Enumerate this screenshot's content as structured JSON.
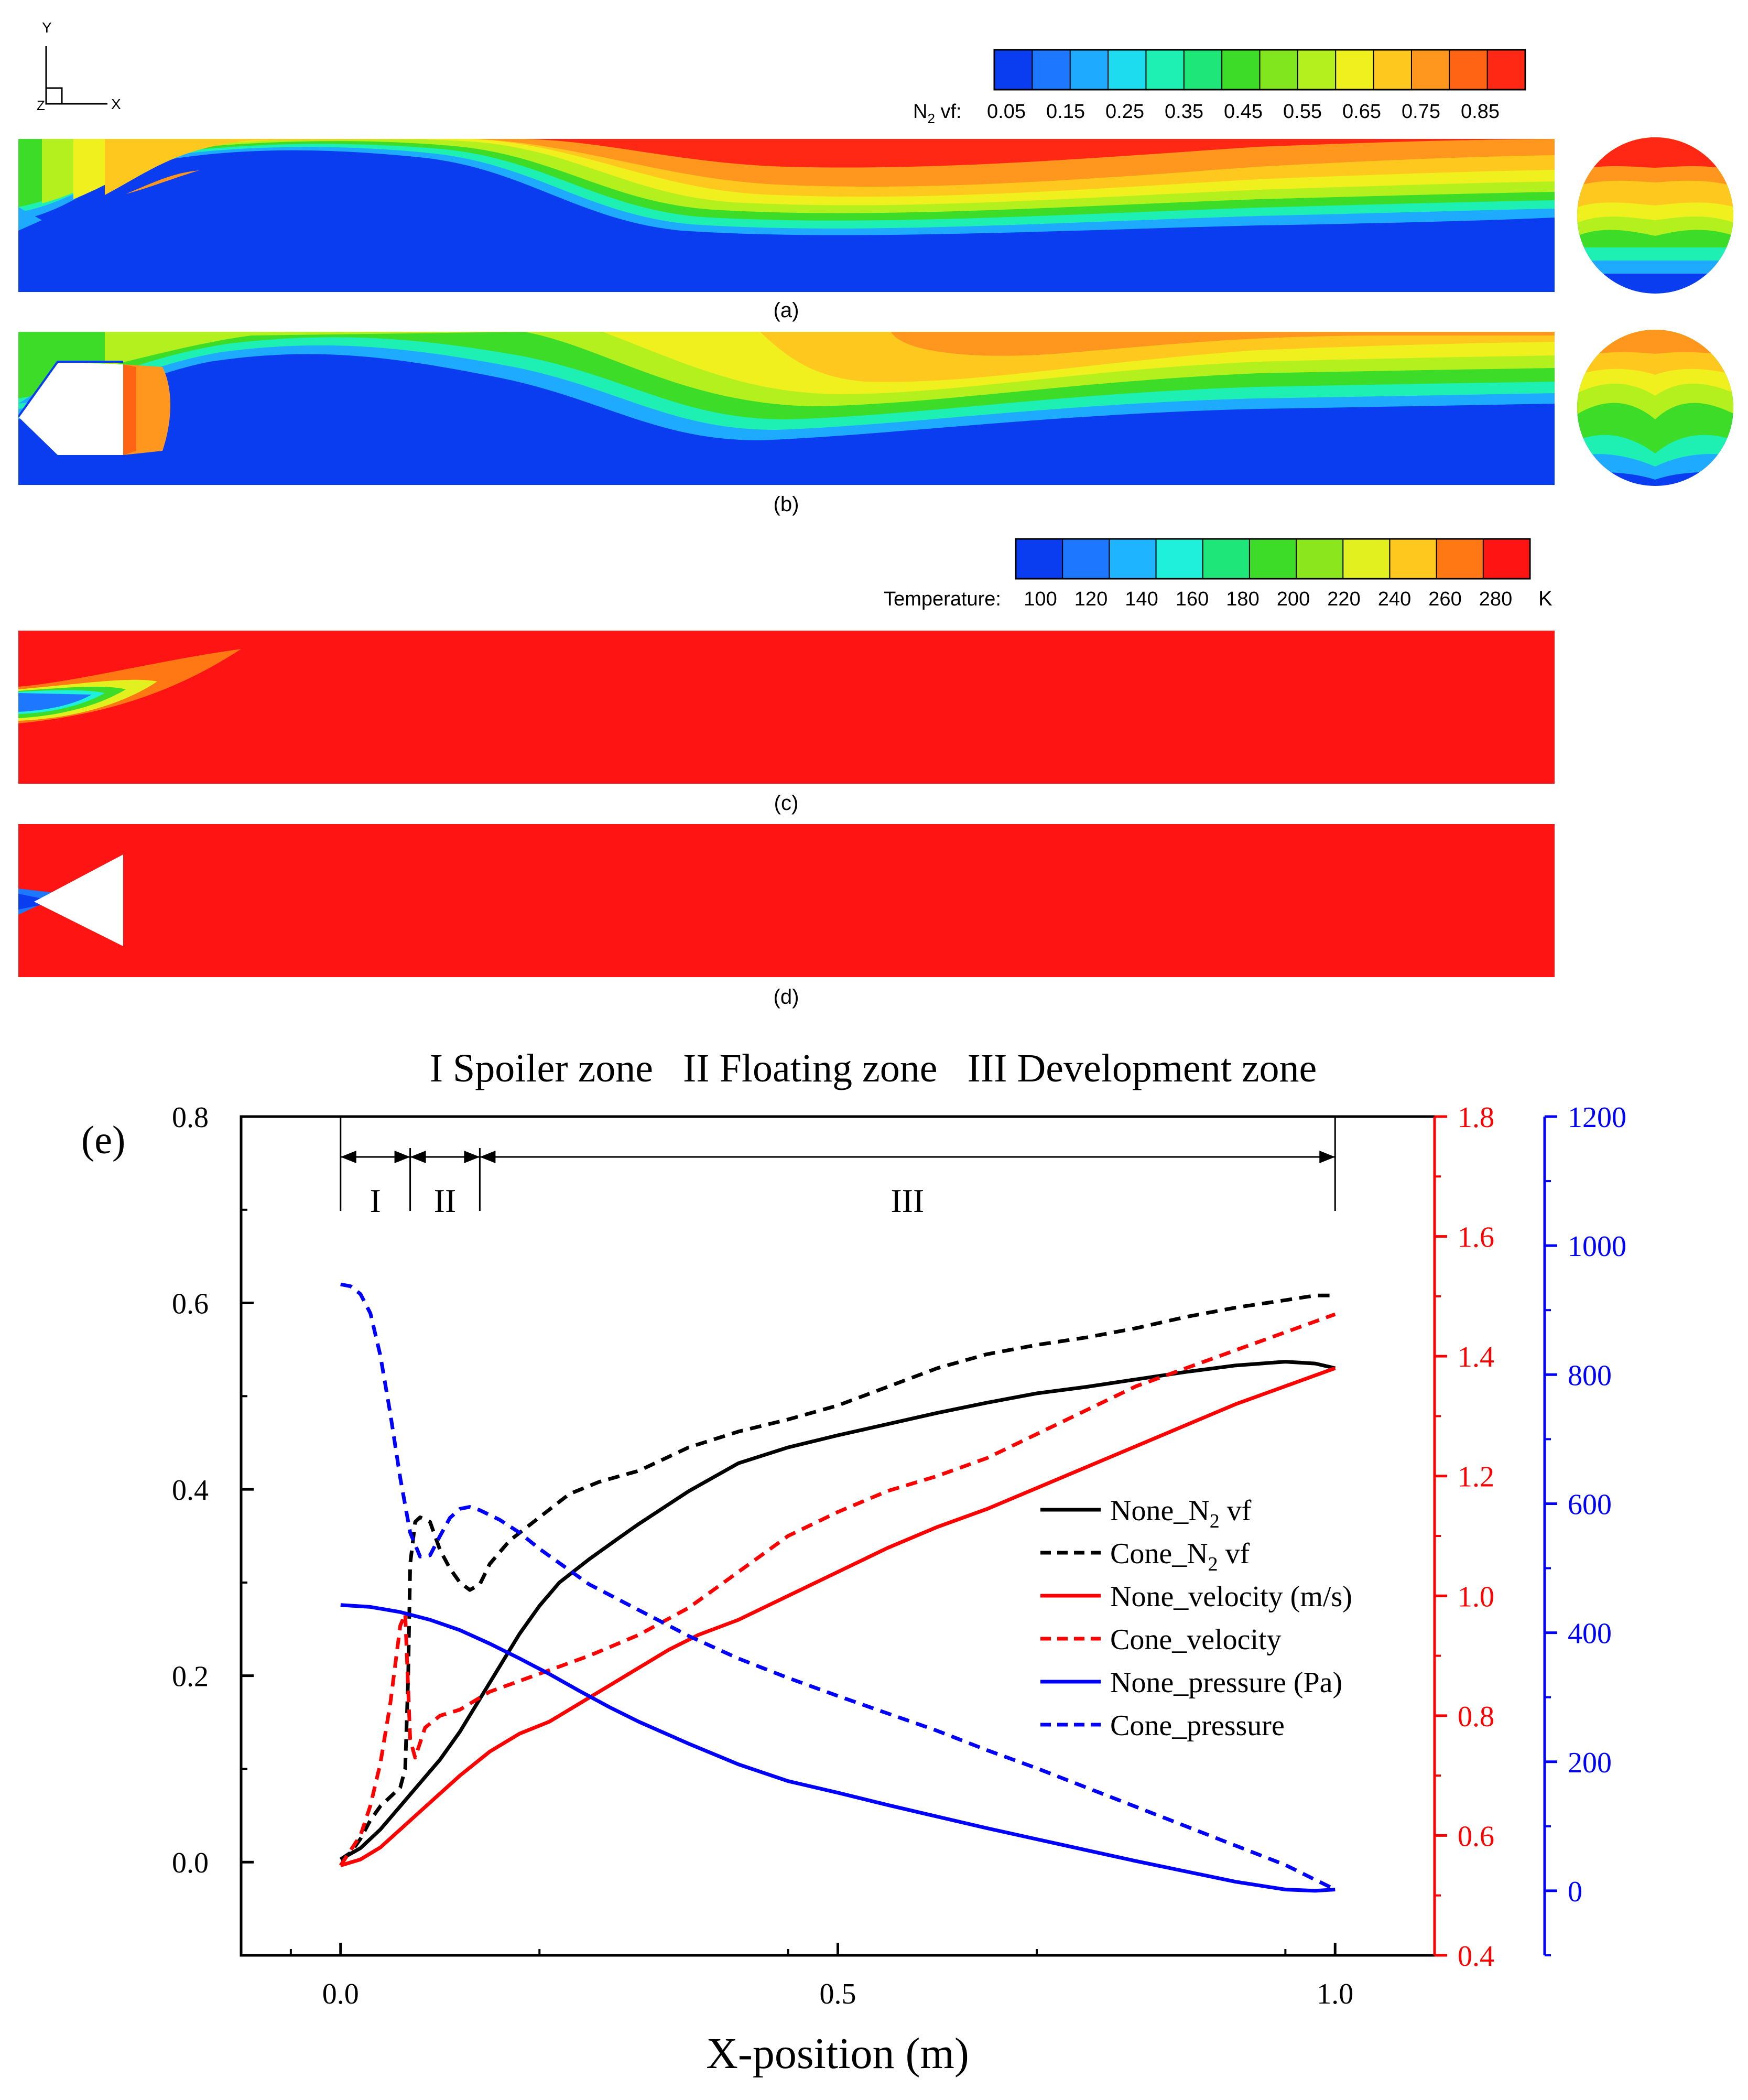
{
  "figure": {
    "panels": [
      {
        "id": "a",
        "label": "(a)",
        "field": "n2"
      },
      {
        "id": "b",
        "label": "(b)",
        "field": "n2"
      },
      {
        "id": "c",
        "label": "(c)",
        "field": "temperature"
      },
      {
        "id": "d",
        "label": "(d)",
        "field": "temperature"
      }
    ],
    "axes_triad": {
      "y": "Y",
      "z": "Z",
      "x": "X"
    },
    "n2_colorbar": {
      "label_main": "N",
      "label_sub": "2",
      "label_tail": " vf:",
      "ticks": [
        "0.05",
        "0.15",
        "0.25",
        "0.35",
        "0.45",
        "0.55",
        "0.65",
        "0.75",
        "0.85"
      ],
      "colors": [
        "#0a3cf0",
        "#1e78ff",
        "#1eaaff",
        "#1edcf0",
        "#1ef0b4",
        "#1ee678",
        "#3cdc28",
        "#82e61e",
        "#b4f01e",
        "#f0f01e",
        "#ffc81e",
        "#ff961e",
        "#ff6414",
        "#ff2814"
      ]
    },
    "temp_colorbar": {
      "label": "Temperature:",
      "unit": "K",
      "ticks": [
        "100",
        "120",
        "140",
        "160",
        "180",
        "200",
        "220",
        "240",
        "260",
        "280"
      ],
      "colors": [
        "#0a3cf0",
        "#1e78ff",
        "#1eb4ff",
        "#1ef0dc",
        "#1ee678",
        "#3cdc28",
        "#8ce61e",
        "#e1f01e",
        "#ffc81e",
        "#ff7814",
        "#ff1414"
      ]
    },
    "field_colors": {
      "blue": "#0a3cf0",
      "red": "#ff1414"
    }
  },
  "chart_data": {
    "type": "line",
    "panel_label": "(e)",
    "title": "I Spoiler zone   II Floating zone   III Development zone",
    "xlabel": "X-position (m)",
    "xlim": [
      -0.1,
      1.1
    ],
    "x_ticks": [
      0.0,
      0.5,
      1.0
    ],
    "x_tick_labels": [
      "0.0",
      "0.5",
      "1.0"
    ],
    "y_axes": [
      {
        "id": "n2",
        "range": [
          -0.1,
          0.8
        ],
        "ticks": [
          0.0,
          0.2,
          0.4,
          0.6,
          0.8
        ],
        "tick_labels": [
          "0.0",
          "0.2",
          "0.4",
          "0.6",
          "0.8"
        ],
        "color": "#000000"
      },
      {
        "id": "velocity",
        "range": [
          0.4,
          1.8
        ],
        "ticks": [
          0.4,
          0.6,
          0.8,
          1.0,
          1.2,
          1.4,
          1.6,
          1.8
        ],
        "tick_labels": [
          "0.4",
          "0.6",
          "0.8",
          "1.0",
          "1.2",
          "1.4",
          "1.6",
          "1.8"
        ],
        "color": "#ff0000"
      },
      {
        "id": "pressure",
        "range": [
          -100,
          1200
        ],
        "ticks": [
          0,
          200,
          400,
          600,
          800,
          1000,
          1200
        ],
        "tick_labels": [
          "0",
          "200",
          "400",
          "600",
          "800",
          "1000",
          "1200"
        ],
        "color": "#0000ff"
      }
    ],
    "zones": [
      {
        "label": "I",
        "start": 0.0,
        "end": 0.07
      },
      {
        "label": "II",
        "start": 0.07,
        "end": 0.14
      },
      {
        "label": "III",
        "start": 0.14,
        "end": 1.0
      }
    ],
    "legend": [
      {
        "label_main": "None_N",
        "label_sub": "2",
        "label_tail": " vf"
      },
      {
        "label_main": "Cone_N",
        "label_sub": "2",
        "label_tail": " vf"
      },
      {
        "label_main": "None_velocity (m/s)",
        "label_sub": "",
        "label_tail": ""
      },
      {
        "label_main": "Cone_velocity",
        "label_sub": "",
        "label_tail": ""
      },
      {
        "label_main": "None_pressure (Pa)",
        "label_sub": "",
        "label_tail": ""
      },
      {
        "label_main": "Cone_pressure",
        "label_sub": "",
        "label_tail": ""
      }
    ],
    "series": [
      {
        "name": "None_N2 vf",
        "axis": "n2",
        "color": "#000000",
        "dash": false,
        "points": [
          [
            0.0,
            0.003
          ],
          [
            0.02,
            0.015
          ],
          [
            0.04,
            0.035
          ],
          [
            0.06,
            0.06
          ],
          [
            0.08,
            0.085
          ],
          [
            0.1,
            0.11
          ],
          [
            0.12,
            0.14
          ],
          [
            0.14,
            0.175
          ],
          [
            0.16,
            0.21
          ],
          [
            0.18,
            0.245
          ],
          [
            0.2,
            0.275
          ],
          [
            0.22,
            0.3
          ],
          [
            0.25,
            0.325
          ],
          [
            0.28,
            0.348
          ],
          [
            0.3,
            0.363
          ],
          [
            0.35,
            0.398
          ],
          [
            0.4,
            0.428
          ],
          [
            0.45,
            0.445
          ],
          [
            0.5,
            0.458
          ],
          [
            0.55,
            0.47
          ],
          [
            0.6,
            0.482
          ],
          [
            0.65,
            0.493
          ],
          [
            0.7,
            0.503
          ],
          [
            0.75,
            0.51
          ],
          [
            0.8,
            0.518
          ],
          [
            0.85,
            0.526
          ],
          [
            0.9,
            0.533
          ],
          [
            0.95,
            0.537
          ],
          [
            0.98,
            0.535
          ],
          [
            1.0,
            0.53
          ]
        ]
      },
      {
        "name": "Cone_N2 vf",
        "axis": "n2",
        "color": "#000000",
        "dash": true,
        "points": [
          [
            0.0,
            0.003
          ],
          [
            0.01,
            0.01
          ],
          [
            0.02,
            0.025
          ],
          [
            0.03,
            0.045
          ],
          [
            0.04,
            0.06
          ],
          [
            0.05,
            0.07
          ],
          [
            0.06,
            0.08
          ],
          [
            0.065,
            0.1
          ],
          [
            0.068,
            0.2
          ],
          [
            0.07,
            0.32
          ],
          [
            0.075,
            0.365
          ],
          [
            0.08,
            0.37
          ],
          [
            0.09,
            0.365
          ],
          [
            0.1,
            0.335
          ],
          [
            0.11,
            0.315
          ],
          [
            0.12,
            0.3
          ],
          [
            0.13,
            0.292
          ],
          [
            0.14,
            0.298
          ],
          [
            0.15,
            0.32
          ],
          [
            0.17,
            0.345
          ],
          [
            0.2,
            0.37
          ],
          [
            0.23,
            0.395
          ],
          [
            0.26,
            0.408
          ],
          [
            0.3,
            0.42
          ],
          [
            0.35,
            0.445
          ],
          [
            0.4,
            0.462
          ],
          [
            0.45,
            0.475
          ],
          [
            0.5,
            0.49
          ],
          [
            0.55,
            0.51
          ],
          [
            0.6,
            0.53
          ],
          [
            0.65,
            0.545
          ],
          [
            0.7,
            0.555
          ],
          [
            0.75,
            0.563
          ],
          [
            0.8,
            0.573
          ],
          [
            0.85,
            0.585
          ],
          [
            0.9,
            0.595
          ],
          [
            0.95,
            0.603
          ],
          [
            0.98,
            0.608
          ],
          [
            1.0,
            0.608
          ]
        ]
      },
      {
        "name": "None_velocity (m/s)",
        "axis": "velocity",
        "color": "#ff0000",
        "dash": false,
        "points": [
          [
            0.0,
            0.55
          ],
          [
            0.02,
            0.56
          ],
          [
            0.04,
            0.58
          ],
          [
            0.06,
            0.61
          ],
          [
            0.08,
            0.64
          ],
          [
            0.1,
            0.67
          ],
          [
            0.12,
            0.7
          ],
          [
            0.15,
            0.74
          ],
          [
            0.18,
            0.77
          ],
          [
            0.21,
            0.79
          ],
          [
            0.24,
            0.82
          ],
          [
            0.27,
            0.85
          ],
          [
            0.3,
            0.88
          ],
          [
            0.33,
            0.91
          ],
          [
            0.36,
            0.935
          ],
          [
            0.4,
            0.96
          ],
          [
            0.45,
            1.0
          ],
          [
            0.5,
            1.04
          ],
          [
            0.55,
            1.08
          ],
          [
            0.6,
            1.115
          ],
          [
            0.65,
            1.145
          ],
          [
            0.7,
            1.18
          ],
          [
            0.75,
            1.215
          ],
          [
            0.8,
            1.25
          ],
          [
            0.85,
            1.285
          ],
          [
            0.9,
            1.32
          ],
          [
            0.95,
            1.35
          ],
          [
            1.0,
            1.38
          ]
        ]
      },
      {
        "name": "Cone_velocity",
        "axis": "velocity",
        "color": "#ff0000",
        "dash": true,
        "points": [
          [
            0.0,
            0.55
          ],
          [
            0.02,
            0.6
          ],
          [
            0.03,
            0.65
          ],
          [
            0.04,
            0.72
          ],
          [
            0.05,
            0.82
          ],
          [
            0.06,
            0.95
          ],
          [
            0.065,
            0.97
          ],
          [
            0.07,
            0.76
          ],
          [
            0.075,
            0.73
          ],
          [
            0.085,
            0.78
          ],
          [
            0.1,
            0.8
          ],
          [
            0.12,
            0.81
          ],
          [
            0.15,
            0.84
          ],
          [
            0.2,
            0.87
          ],
          [
            0.25,
            0.9
          ],
          [
            0.3,
            0.935
          ],
          [
            0.35,
            0.98
          ],
          [
            0.4,
            1.04
          ],
          [
            0.45,
            1.1
          ],
          [
            0.5,
            1.14
          ],
          [
            0.55,
            1.175
          ],
          [
            0.6,
            1.2
          ],
          [
            0.65,
            1.23
          ],
          [
            0.7,
            1.27
          ],
          [
            0.75,
            1.31
          ],
          [
            0.8,
            1.35
          ],
          [
            0.85,
            1.38
          ],
          [
            0.9,
            1.41
          ],
          [
            0.95,
            1.44
          ],
          [
            1.0,
            1.47
          ]
        ]
      },
      {
        "name": "None_pressure (Pa)",
        "axis": "pressure",
        "color": "#0000ff",
        "dash": false,
        "points": [
          [
            0.0,
            443
          ],
          [
            0.03,
            440
          ],
          [
            0.06,
            432
          ],
          [
            0.09,
            420
          ],
          [
            0.12,
            404
          ],
          [
            0.15,
            383
          ],
          [
            0.18,
            360
          ],
          [
            0.21,
            336
          ],
          [
            0.24,
            310
          ],
          [
            0.27,
            285
          ],
          [
            0.3,
            262
          ],
          [
            0.35,
            228
          ],
          [
            0.4,
            196
          ],
          [
            0.45,
            170
          ],
          [
            0.5,
            152
          ],
          [
            0.55,
            133
          ],
          [
            0.6,
            115
          ],
          [
            0.65,
            97
          ],
          [
            0.7,
            80
          ],
          [
            0.75,
            63
          ],
          [
            0.8,
            46
          ],
          [
            0.85,
            30
          ],
          [
            0.9,
            14
          ],
          [
            0.95,
            2
          ],
          [
            0.98,
            0
          ],
          [
            1.0,
            2
          ]
        ]
      },
      {
        "name": "Cone_pressure",
        "axis": "pressure",
        "color": "#0000ff",
        "dash": true,
        "points": [
          [
            0.0,
            940
          ],
          [
            0.01,
            937
          ],
          [
            0.02,
            925
          ],
          [
            0.03,
            895
          ],
          [
            0.04,
            830
          ],
          [
            0.05,
            740
          ],
          [
            0.06,
            640
          ],
          [
            0.07,
            555
          ],
          [
            0.08,
            518
          ],
          [
            0.09,
            520
          ],
          [
            0.1,
            550
          ],
          [
            0.11,
            578
          ],
          [
            0.12,
            592
          ],
          [
            0.13,
            595
          ],
          [
            0.14,
            590
          ],
          [
            0.16,
            575
          ],
          [
            0.18,
            555
          ],
          [
            0.2,
            530
          ],
          [
            0.25,
            475
          ],
          [
            0.3,
            435
          ],
          [
            0.35,
            395
          ],
          [
            0.4,
            360
          ],
          [
            0.45,
            330
          ],
          [
            0.5,
            302
          ],
          [
            0.55,
            275
          ],
          [
            0.6,
            248
          ],
          [
            0.65,
            218
          ],
          [
            0.7,
            190
          ],
          [
            0.75,
            160
          ],
          [
            0.8,
            130
          ],
          [
            0.85,
            100
          ],
          [
            0.9,
            70
          ],
          [
            0.95,
            40
          ],
          [
            1.0,
            2
          ]
        ]
      }
    ]
  }
}
